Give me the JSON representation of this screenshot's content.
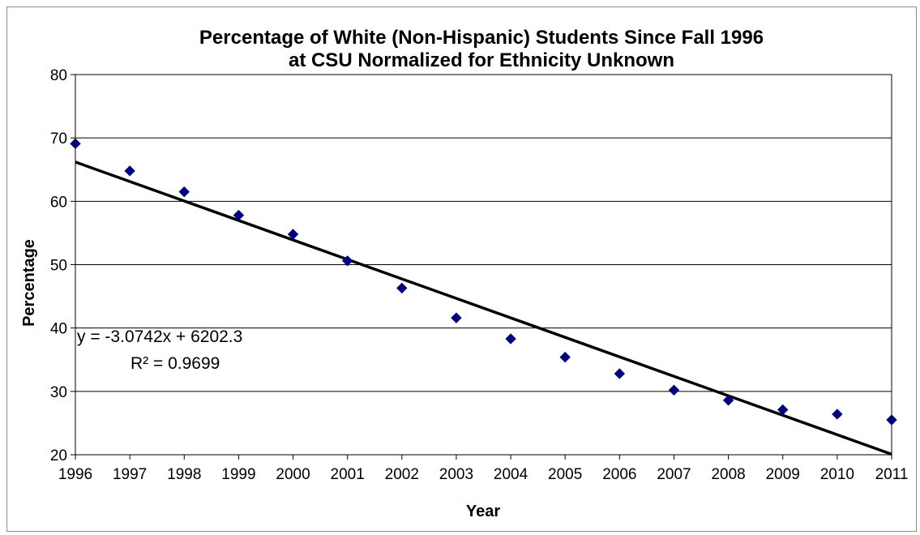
{
  "chart_data": {
    "type": "scatter",
    "title": "Percentage of White (Non-Hispanic) Students Since Fall 1996",
    "subtitle": "at CSU Normalized for Ethnicity Unknown",
    "xlabel": "Year",
    "ylabel": "Percentage",
    "xlim": [
      1996,
      2011
    ],
    "ylim": [
      20,
      80
    ],
    "x_ticks": [
      "1996",
      "1997",
      "1998",
      "1999",
      "2000",
      "2001",
      "2002",
      "2003",
      "2004",
      "2005",
      "2006",
      "2007",
      "2008",
      "2009",
      "2010",
      "2011"
    ],
    "y_ticks": [
      "20",
      "30",
      "40",
      "50",
      "60",
      "70",
      "80"
    ],
    "grid": true,
    "legend": "none",
    "marker": "diamond",
    "marker_color": "#00007f",
    "series": [
      {
        "x": [
          1996,
          1997,
          1998,
          1999,
          2000,
          2001,
          2002,
          2003,
          2004,
          2005,
          2006,
          2007,
          2008,
          2009,
          2010,
          2011
        ],
        "values": [
          69.1,
          64.8,
          61.5,
          57.8,
          54.8,
          50.6,
          46.3,
          41.6,
          38.3,
          35.4,
          32.8,
          30.2,
          28.6,
          27.1,
          26.4,
          25.5
        ]
      }
    ],
    "trendline": {
      "type": "linear",
      "slope": -3.0742,
      "intercept": 6202.3,
      "color": "#000000",
      "equation_label": "y = -3.0742x + 6202.3",
      "r2_label": "R² = 0.9699"
    }
  }
}
